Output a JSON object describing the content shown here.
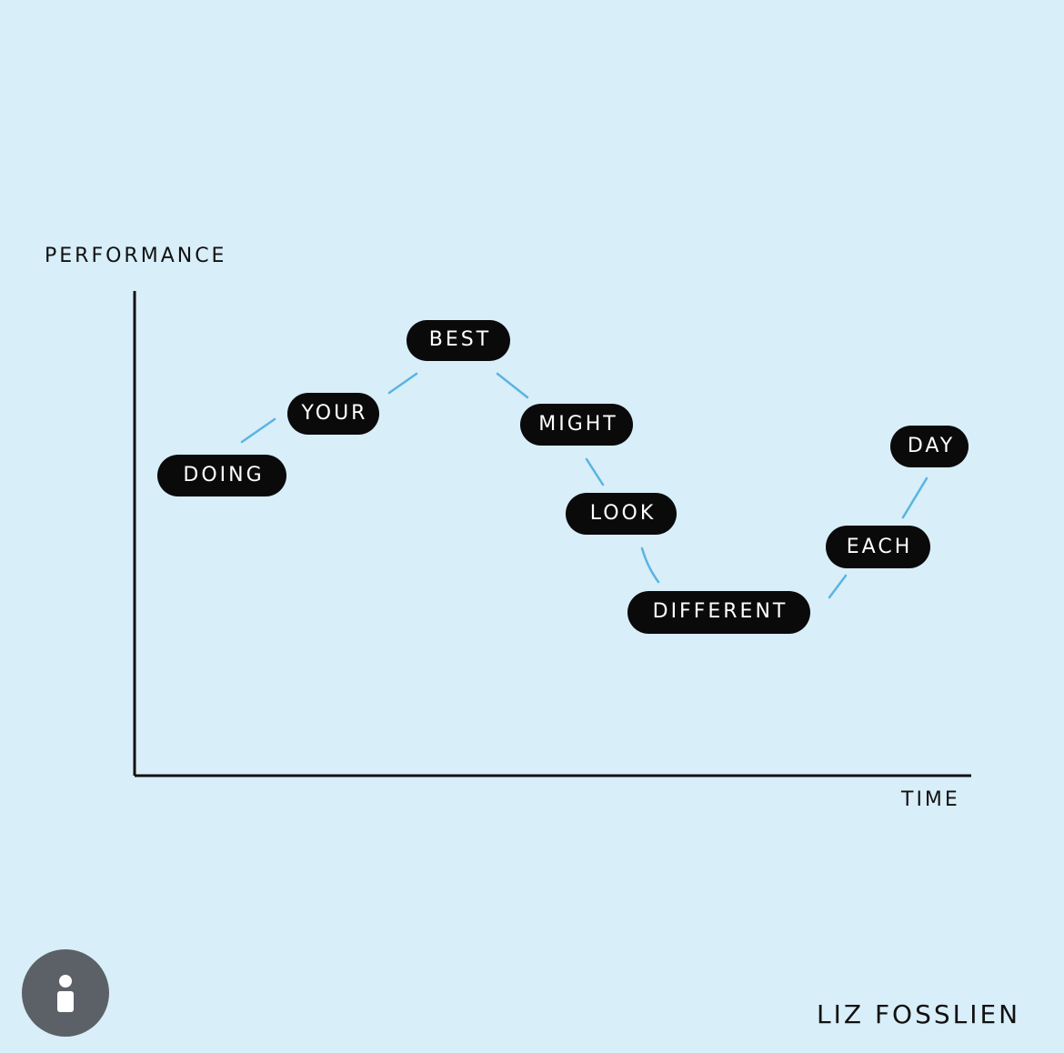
{
  "chart": {
    "y_axis_label": "PERFORMANCE",
    "x_axis_label": "TIME",
    "words": [
      "DOING",
      "YOUR",
      "BEST",
      "MIGHT",
      "LOOK",
      "DIFFERENT",
      "EACH",
      "DAY"
    ],
    "credit": "LIZ FOSSLIEN"
  }
}
